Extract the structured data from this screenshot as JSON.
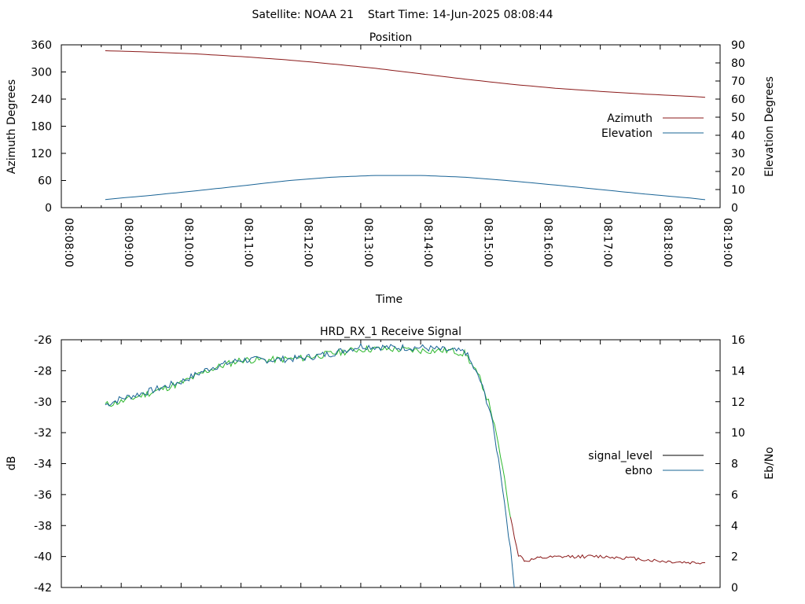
{
  "page_title": "Satellite: NOAA 21    Start Time: 14-Jun-2025 08:08:44",
  "chart_data": [
    {
      "type": "line",
      "title": "Position",
      "xlabel": "Time",
      "ylabel": "Azimuth Degrees",
      "y2label": "Elevation Degrees",
      "xlim": [
        "08:08:00",
        "08:19:00"
      ],
      "xticks": [
        "08:08:00",
        "08:09:00",
        "08:10:00",
        "08:11:00",
        "08:12:00",
        "08:13:00",
        "08:14:00",
        "08:15:00",
        "08:16:00",
        "08:17:00",
        "08:18:00",
        "08:19:00"
      ],
      "ylim": [
        0,
        360
      ],
      "yticks": [
        0,
        60,
        120,
        180,
        240,
        300,
        360
      ],
      "y2lim": [
        0,
        90
      ],
      "y2ticks": [
        0,
        10,
        20,
        30,
        40,
        50,
        60,
        70,
        80,
        90
      ],
      "legend_position": "right",
      "series": [
        {
          "name": "Azimuth",
          "axis": "y",
          "color": "#8b1a1a",
          "x": [
            "08:08:44",
            "08:09:30",
            "08:10:15",
            "08:11:00",
            "08:11:45",
            "08:12:30",
            "08:13:15",
            "08:14:00",
            "08:14:45",
            "08:15:30",
            "08:16:15",
            "08:17:00",
            "08:17:45",
            "08:18:30",
            "08:18:45"
          ],
          "y": [
            347,
            344,
            340,
            334,
            327,
            318,
            308,
            296,
            284,
            273,
            264,
            257,
            251,
            246,
            244
          ]
        },
        {
          "name": "Elevation",
          "axis": "y2",
          "color": "#1a6496",
          "x": [
            "08:08:44",
            "08:09:30",
            "08:10:15",
            "08:11:00",
            "08:11:45",
            "08:12:30",
            "08:13:15",
            "08:14:00",
            "08:14:45",
            "08:15:30",
            "08:16:15",
            "08:17:00",
            "08:17:45",
            "08:18:30",
            "08:18:45"
          ],
          "y": [
            4.5,
            6.8,
            9.3,
            12.0,
            14.8,
            16.8,
            17.8,
            17.8,
            16.8,
            14.8,
            12.5,
            10.0,
            7.5,
            5.3,
            4.4
          ]
        }
      ]
    },
    {
      "type": "line",
      "title": "HRD_RX_1 Receive Signal",
      "ylabel": "dB",
      "y2label": "Eb/No",
      "xlim": [
        "08:08:00",
        "08:19:00"
      ],
      "ylim": [
        -42,
        -26
      ],
      "yticks": [
        -42,
        -40,
        -38,
        -36,
        -34,
        -32,
        -30,
        -28,
        -26
      ],
      "y2lim": [
        0,
        16
      ],
      "y2ticks": [
        0,
        2,
        4,
        6,
        8,
        10,
        12,
        14,
        16
      ],
      "legend_position": "right",
      "series": [
        {
          "name": "signal_level",
          "axis": "y",
          "color": "#000000",
          "segments": [
            {
              "color": "#2db82d",
              "x": [
                "08:08:44",
                "08:09:00",
                "08:09:30",
                "08:10:00",
                "08:10:30",
                "08:11:00",
                "08:11:30",
                "08:12:00",
                "08:12:30",
                "08:13:00",
                "08:13:30",
                "08:14:00",
                "08:14:30",
                "08:14:45",
                "08:15:00",
                "08:15:10",
                "08:15:20",
                "08:15:30"
              ],
              "y": [
                -30.2,
                -30.0,
                -29.4,
                -28.8,
                -27.9,
                -27.3,
                -27.3,
                -27.2,
                -26.9,
                -26.6,
                -26.6,
                -26.7,
                -26.7,
                -26.9,
                -28.6,
                -30.4,
                -33.5,
                -37.5
              ]
            },
            {
              "color": "#8b1a1a",
              "x": [
                "08:15:30",
                "08:15:38",
                "08:15:45",
                "08:16:00",
                "08:16:30",
                "08:17:00",
                "08:17:30",
                "08:18:00",
                "08:18:30",
                "08:18:45"
              ],
              "y": [
                -37.5,
                -39.9,
                -40.3,
                -40.1,
                -40.0,
                -40.0,
                -40.1,
                -40.3,
                -40.4,
                -40.4
              ]
            }
          ]
        },
        {
          "name": "ebno",
          "axis": "y2",
          "color": "#1a6496",
          "x": [
            "08:08:44",
            "08:09:00",
            "08:09:30",
            "08:10:00",
            "08:10:30",
            "08:11:00",
            "08:11:30",
            "08:12:00",
            "08:12:30",
            "08:13:00",
            "08:13:30",
            "08:14:00",
            "08:14:30",
            "08:14:45",
            "08:15:00",
            "08:15:10",
            "08:15:20",
            "08:15:28",
            "08:15:35"
          ],
          "y": [
            11.8,
            12.2,
            12.7,
            13.3,
            14.2,
            14.7,
            14.7,
            14.8,
            15.1,
            15.6,
            15.5,
            15.5,
            15.3,
            15.2,
            13.3,
            11.3,
            7.5,
            3.5,
            -0.5
          ]
        }
      ]
    }
  ]
}
